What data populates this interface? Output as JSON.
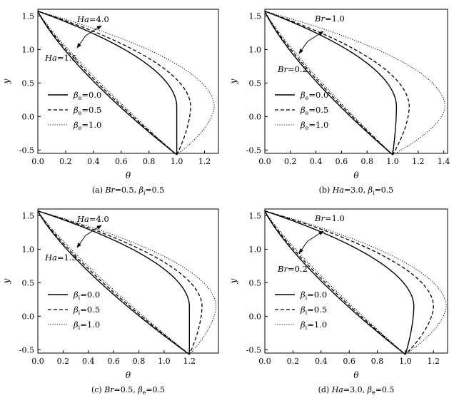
{
  "chart_data": [
    {
      "type": "line",
      "xlabel": "θ",
      "ylabel": "y",
      "xlim": [
        0,
        1.3
      ],
      "ylim": [
        -0.55,
        1.6
      ],
      "xticks": [
        "0.0",
        "0.2",
        "0.4",
        "0.6",
        "0.8",
        "1.0",
        "1.2"
      ],
      "yticks": [
        "-0.5",
        "0.0",
        "0.5",
        "1.0",
        "1.5"
      ],
      "caption": {
        "prefix": "(a) ",
        "v1": "Br",
        "t1": "=0.5, ",
        "v2": "β",
        "s2": "i",
        "t2": "=0.5"
      },
      "legend_position": "lower-left",
      "legend": [
        {
          "sym": "β",
          "sub": "e",
          "val": "=0.0",
          "dash": "solid"
        },
        {
          "sym": "β",
          "sub": "e",
          "val": "=0.5",
          "dash": "dashed"
        },
        {
          "sym": "β",
          "sub": "e",
          "val": "=1.0",
          "dash": "dotted"
        }
      ],
      "annotations": {
        "upper": {
          "var": "Ha",
          "val": "=4.0"
        },
        "lower": {
          "var": "Ha",
          "val": "=1.5"
        }
      },
      "upper_group": {
        "thetas": [
          1.0,
          1.1,
          1.27
        ]
      },
      "lower_group": {
        "thetas": [
          1.0,
          1.0,
          1.0
        ]
      }
    },
    {
      "type": "line",
      "xlabel": "θ",
      "ylabel": "y",
      "xlim": [
        0,
        1.43
      ],
      "ylim": [
        -0.55,
        1.6
      ],
      "xticks": [
        "0.0",
        "0.2",
        "0.4",
        "0.6",
        "0.8",
        "1.0",
        "1.2",
        "1.4"
      ],
      "yticks": [
        "-0.5",
        "0.0",
        "0.5",
        "1.0",
        "1.5"
      ],
      "caption": {
        "prefix": "(b) ",
        "v1": "Ha",
        "t1": "=3.0, ",
        "v2": "β",
        "s2": "i",
        "t2": "=0.5"
      },
      "legend_position": "lower-left",
      "legend": [
        {
          "sym": "β",
          "sub": "e",
          "val": "=0.0",
          "dash": "solid"
        },
        {
          "sym": "β",
          "sub": "e",
          "val": "=0.5",
          "dash": "dashed"
        },
        {
          "sym": "β",
          "sub": "e",
          "val": "=1.0",
          "dash": "dotted"
        }
      ],
      "annotations": {
        "upper": {
          "var": "Br",
          "val": "=1.0"
        },
        "lower": {
          "var": "Br",
          "val": "=0.2"
        }
      },
      "upper_group": {
        "thetas": [
          1.03,
          1.13,
          1.41
        ]
      },
      "lower_group": {
        "thetas": [
          1.0,
          1.0,
          1.0
        ]
      }
    },
    {
      "type": "line",
      "xlabel": "θ",
      "ylabel": "y",
      "xlim": [
        0,
        1.43
      ],
      "ylim": [
        -0.55,
        1.6
      ],
      "xticks": [
        "0.0",
        "0.2",
        "0.4",
        "0.6",
        "0.8",
        "1.0",
        "1.2"
      ],
      "yticks": [
        "-0.5",
        "0.0",
        "0.5",
        "1.0",
        "1.5"
      ],
      "caption": {
        "prefix": "(c) ",
        "v1": "Br",
        "t1": "=0.5, ",
        "v2": "β",
        "s2": "e",
        "t2": "=0.5"
      },
      "legend_position": "lower-left",
      "legend": [
        {
          "sym": "β",
          "sub": "i",
          "val": "=0.0",
          "dash": "solid"
        },
        {
          "sym": "β",
          "sub": "i",
          "val": "=0.5",
          "dash": "dashed"
        },
        {
          "sym": "β",
          "sub": "i",
          "val": "=1.0",
          "dash": "dotted"
        }
      ],
      "annotations": {
        "upper": {
          "var": "Ha",
          "val": "=4.0"
        },
        "lower": {
          "var": "Ha",
          "val": "=1.5"
        }
      },
      "upper_group": {
        "thetas": [
          1.2,
          1.3,
          1.41
        ]
      },
      "lower_group": {
        "thetas": [
          1.2,
          1.2,
          1.2
        ]
      }
    },
    {
      "type": "line",
      "xlabel": "θ",
      "ylabel": "y",
      "xlim": [
        0,
        1.3
      ],
      "ylim": [
        -0.55,
        1.6
      ],
      "xticks": [
        "0.0",
        "0.2",
        "0.4",
        "0.6",
        "0.8",
        "1.0",
        "1.2"
      ],
      "yticks": [
        "-0.5",
        "0.0",
        "0.5",
        "1.0",
        "1.5"
      ],
      "caption": {
        "prefix": "(d) ",
        "v1": "Ha",
        "t1": "=3.0, ",
        "v2": "β",
        "s2": "e",
        "t2": "=0.5"
      },
      "legend_position": "lower-left",
      "legend": [
        {
          "sym": "β",
          "sub": "i",
          "val": "=0.0",
          "dash": "solid"
        },
        {
          "sym": "β",
          "sub": "i",
          "val": "=0.5",
          "dash": "dashed"
        },
        {
          "sym": "β",
          "sub": "i",
          "val": "=1.0",
          "dash": "dotted"
        }
      ],
      "annotations": {
        "upper": {
          "var": "Br",
          "val": "=1.0"
        },
        "lower": {
          "var": "Br",
          "val": "=0.2"
        }
      },
      "upper_group": {
        "thetas": [
          1.06,
          1.2,
          1.29
        ]
      },
      "lower_group": {
        "thetas": [
          1.0,
          1.0,
          1.0
        ]
      }
    }
  ]
}
